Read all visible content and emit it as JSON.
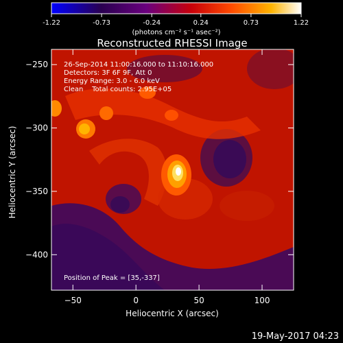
{
  "colorbar": {
    "ticks": [
      -1.22,
      -0.73,
      -0.24,
      0.24,
      0.73,
      1.22
    ],
    "tick_labels": [
      "-1.22",
      "-0.73",
      "-0.24",
      "0.24",
      "0.73",
      "1.22"
    ],
    "range": [
      -1.22,
      1.22
    ],
    "unit_label": "(photons cm⁻² s⁻¹ asec⁻²)",
    "colors": [
      "#0000ff",
      "#2a0050",
      "#6a007e",
      "#c8000a",
      "#ff4a00",
      "#ffb400",
      "#ffffff"
    ]
  },
  "chart_data": {
    "type": "heatmap",
    "title": "Reconstructed RHESSI Image",
    "xlabel": "Heliocentric X (arcsec)",
    "ylabel": "Heliocentric Y (arcsec)",
    "xlim": [
      -67,
      125
    ],
    "ylim": [
      -428,
      -238
    ],
    "x_ticks": [
      -50,
      0,
      50,
      100
    ],
    "x_tick_labels": [
      "−50",
      "0",
      "50",
      "100"
    ],
    "y_ticks": [
      -250,
      -300,
      -350,
      -400
    ],
    "y_tick_labels": [
      "−250",
      "−300",
      "−350",
      "−400"
    ],
    "annotations": [
      "26-Sep-2014 11:00:16.000 to 11:10:16.000",
      "Detectors: 3F 6F 9F, Att 0",
      "Energy Range: 3.0 - 6.0 keV",
      "Clean    Total counts: 2.95E+05"
    ],
    "peak_label": "Position of Peak = [35,-337]",
    "peak": [
      35,
      -337
    ],
    "grid": false
  },
  "footer": {
    "date": "19-May-2017 04:23"
  }
}
